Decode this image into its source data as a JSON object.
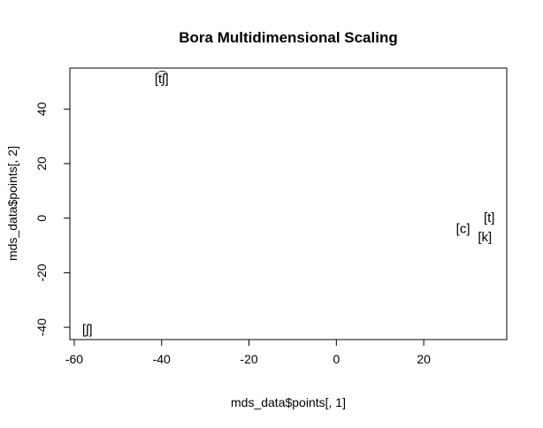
{
  "chart_data": {
    "type": "scatter",
    "title": "Bora Multidimensional Scaling",
    "xlabel": "mds_data$points[, 1]",
    "ylabel": "mds_data$points[, 2]",
    "xlim": [
      -61,
      39
    ],
    "ylim": [
      -44.5,
      55
    ],
    "x_ticks": [
      -60,
      -40,
      -20,
      0,
      20
    ],
    "y_ticks": [
      -40,
      -20,
      0,
      20,
      40
    ],
    "grid": false,
    "legend": "none",
    "point_style": "text-label",
    "points": [
      {
        "label": "[t͡ʃ]",
        "x": -40,
        "y": 51
      },
      {
        "label": "[t]",
        "x": 35,
        "y": 0
      },
      {
        "label": "[c]",
        "x": 29,
        "y": -4
      },
      {
        "label": "[k]",
        "x": 34,
        "y": -7
      },
      {
        "label": "[ʃ]",
        "x": -57,
        "y": -41
      }
    ]
  }
}
